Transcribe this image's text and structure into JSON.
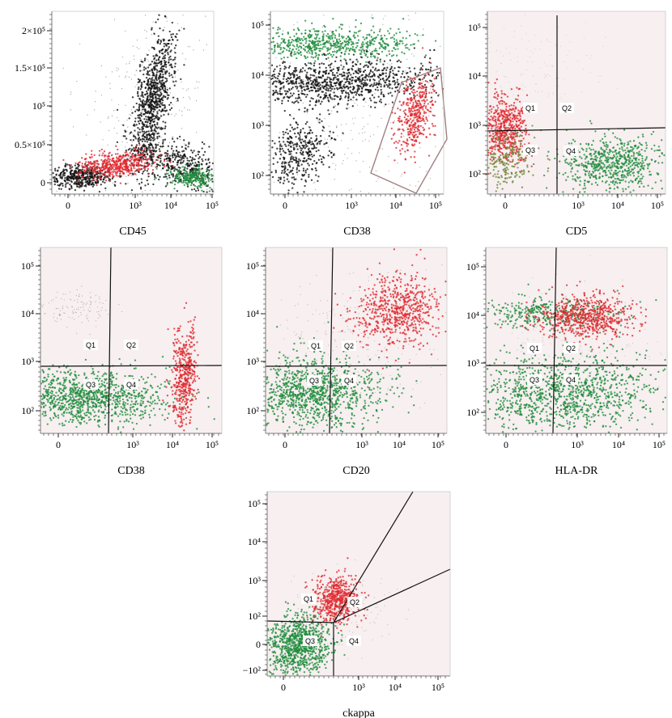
{
  "figure": {
    "panels": [
      {
        "id": "p1",
        "xlabel": "CD45",
        "ylabel": "",
        "xticks": [
          "0",
          "10³",
          "10⁴",
          "10⁵"
        ],
        "yticks": [
          "0",
          "0.5×10⁵",
          "10⁵",
          "1.5×10⁵",
          "2×10⁵"
        ],
        "quadrant_labels": [],
        "gate": "none",
        "populations": [
          "black",
          "red",
          "green"
        ]
      },
      {
        "id": "p2",
        "xlabel": "CD38",
        "ylabel": "",
        "xticks": [
          "0",
          "10³",
          "10⁴",
          "10⁵"
        ],
        "yticks": [
          "10²",
          "10³",
          "10⁴",
          "10⁵"
        ],
        "quadrant_labels": [],
        "gate": "polygon",
        "populations": [
          "green",
          "black",
          "red"
        ]
      },
      {
        "id": "p3",
        "xlabel": "CD5",
        "ylabel": "",
        "xticks": [
          "0",
          "10³",
          "10⁴",
          "10⁵"
        ],
        "yticks": [
          "10²",
          "10³",
          "10⁴",
          "10⁵"
        ],
        "quadrant_labels": [
          "Q1",
          "Q2",
          "Q3",
          "Q4"
        ],
        "gate": "quadrant",
        "populations": [
          "red",
          "green"
        ]
      },
      {
        "id": "p4",
        "xlabel": "CD38",
        "ylabel": "",
        "xticks": [
          "0",
          "10³",
          "10⁴",
          "10⁵"
        ],
        "yticks": [
          "10²",
          "10³",
          "10⁴",
          "10⁵"
        ],
        "quadrant_labels": [
          "Q1",
          "Q2",
          "Q3",
          "Q4"
        ],
        "gate": "quadrant",
        "populations": [
          "green",
          "red"
        ]
      },
      {
        "id": "p5",
        "xlabel": "CD20",
        "ylabel": "",
        "xticks": [
          "0",
          "10³",
          "10⁴",
          "10⁵"
        ],
        "yticks": [
          "10²",
          "10³",
          "10⁴",
          "10⁵"
        ],
        "quadrant_labels": [
          "Q1",
          "Q2",
          "Q3",
          "Q4"
        ],
        "gate": "quadrant",
        "populations": [
          "green",
          "red"
        ]
      },
      {
        "id": "p6",
        "xlabel": "HLA-DR",
        "ylabel": "",
        "xticks": [
          "0",
          "10³",
          "10⁴",
          "10⁵"
        ],
        "yticks": [
          "10²",
          "10³",
          "10⁴",
          "10⁵"
        ],
        "quadrant_labels": [
          "Q1",
          "Q2",
          "Q3",
          "Q4"
        ],
        "gate": "quadrant",
        "populations": [
          "green",
          "red"
        ]
      },
      {
        "id": "p7",
        "xlabel": "ckappa",
        "ylabel": "",
        "xticks": [
          "0",
          "10³",
          "10⁴",
          "10⁵"
        ],
        "yticks": [
          "−10²",
          "0",
          "10²",
          "10³",
          "10⁴",
          "10⁵"
        ],
        "quadrant_labels": [
          "Q1",
          "Q2",
          "Q3",
          "Q4"
        ],
        "gate": "angled-quadrant",
        "populations": [
          "green",
          "red"
        ]
      }
    ]
  },
  "colors": {
    "black_population": "#111111",
    "red_population": "#e0282e",
    "green_population": "#1e8c3c",
    "plot_bg_tinted": "#f1e4e6",
    "gate_line": "#111111",
    "polygon_gate": "#a08080"
  },
  "chart_data": [
    {
      "type": "scatter",
      "title": "",
      "xlabel": "CD45",
      "ylabel": "",
      "x_scale": "biexponential",
      "y_scale": "linear",
      "ylim": [
        0,
        200000
      ],
      "series": [
        {
          "name": "",
          "color": "#111111",
          "x_center": 5000,
          "y_center": 80000
        },
        {
          "name": "",
          "color": "#111111",
          "x_center": 30,
          "y_center": 3000
        },
        {
          "name": "",
          "color": "#e0282e",
          "x_center": 800,
          "y_center": 10000
        },
        {
          "name": "",
          "color": "#1e8c3c",
          "x_center": 25000,
          "y_center": 3000
        }
      ]
    },
    {
      "type": "scatter",
      "title": "",
      "xlabel": "CD38",
      "ylabel": "",
      "x_scale": "biexponential",
      "y_scale": "log",
      "series": [
        {
          "name": "",
          "color": "#1e8c3c",
          "x_center": 700,
          "y_center": 40000
        },
        {
          "name": "",
          "color": "#111111",
          "x_center": 4000,
          "y_center": 6000
        },
        {
          "name": "",
          "color": "#e0282e",
          "x_center": 30000,
          "y_center": 1000
        }
      ]
    },
    {
      "type": "scatter",
      "title": "",
      "xlabel": "CD5",
      "ylabel": "",
      "x_scale": "biexponential",
      "y_scale": "log",
      "series": [
        {
          "name": "",
          "color": "#e0282e",
          "x_center": 100,
          "y_center": 800
        },
        {
          "name": "",
          "color": "#1e8c3c",
          "x_center": 10000,
          "y_center": 180
        }
      ]
    },
    {
      "type": "scatter",
      "title": "",
      "xlabel": "CD38",
      "ylabel": "",
      "x_scale": "biexponential",
      "y_scale": "log",
      "series": [
        {
          "name": "",
          "color": "#1e8c3c",
          "x_center": 200,
          "y_center": 180
        },
        {
          "name": "",
          "color": "#e0282e",
          "x_center": 30000,
          "y_center": 500
        }
      ]
    },
    {
      "type": "scatter",
      "title": "",
      "xlabel": "CD20",
      "ylabel": "",
      "x_scale": "biexponential",
      "y_scale": "log",
      "series": [
        {
          "name": "",
          "color": "#1e8c3c",
          "x_center": 150,
          "y_center": 250
        },
        {
          "name": "",
          "color": "#e0282e",
          "x_center": 20000,
          "y_center": 10000
        }
      ]
    },
    {
      "type": "scatter",
      "title": "",
      "xlabel": "HLA-DR",
      "ylabel": "",
      "x_scale": "biexponential",
      "y_scale": "log",
      "series": [
        {
          "name": "",
          "color": "#1e8c3c",
          "x_center": 500,
          "y_center": 250
        },
        {
          "name": "",
          "color": "#e0282e",
          "x_center": 3000,
          "y_center": 10000
        }
      ]
    },
    {
      "type": "scatter",
      "title": "",
      "xlabel": "ckappa",
      "ylabel": "",
      "x_scale": "biexponential",
      "y_scale": "biexponential",
      "series": [
        {
          "name": "",
          "color": "#1e8c3c",
          "x_center": 80,
          "y_center": -10
        },
        {
          "name": "",
          "color": "#e0282e",
          "x_center": 700,
          "y_center": 250
        }
      ]
    }
  ]
}
